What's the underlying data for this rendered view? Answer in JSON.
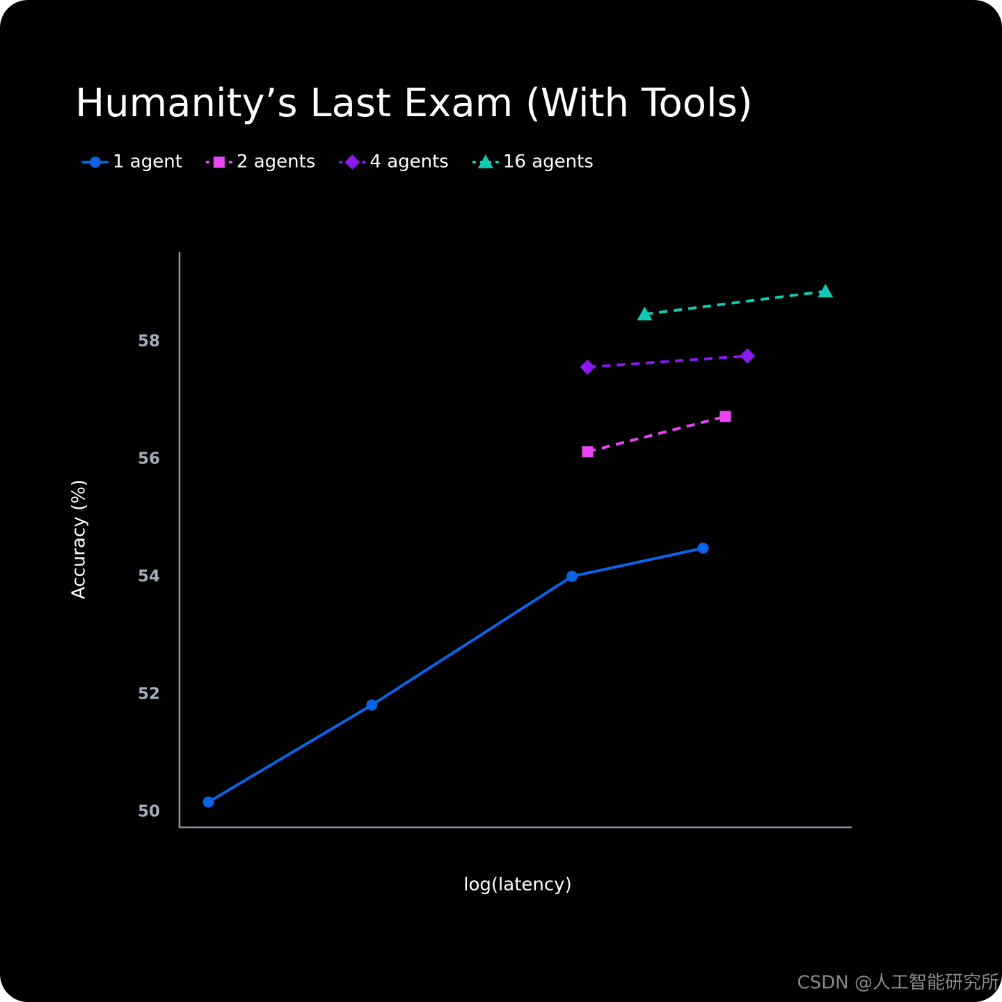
{
  "chart_data": {
    "type": "line",
    "title": "Humanity’s Last Exam (With Tools)",
    "xlabel": "log(latency)",
    "ylabel": "Accuracy (%)",
    "xlim": [
      0,
      100
    ],
    "ylim": [
      49.74,
      59.53
    ],
    "yticks": [
      50,
      52,
      54,
      56,
      58
    ],
    "grid": false,
    "legend": "top-left",
    "series": [
      {
        "name": "1 agent",
        "color": "#0a64e6",
        "marker": "circle",
        "dash": "solid",
        "x": [
          4.3,
          28.6,
          58.4,
          77.9
        ],
        "values": [
          50.17,
          51.82,
          54.01,
          54.49
        ]
      },
      {
        "name": "2 agents",
        "color": "#e945f0",
        "marker": "square",
        "dash": "dashed",
        "x": [
          60.7,
          81.2
        ],
        "values": [
          56.13,
          56.73
        ]
      },
      {
        "name": "4 agents",
        "color": "#8a19f2",
        "marker": "diamond",
        "dash": "dashed",
        "x": [
          60.7,
          84.5
        ],
        "values": [
          57.57,
          57.76
        ]
      },
      {
        "name": "16 agents",
        "color": "#12c9b4",
        "marker": "triangle",
        "dash": "dashed",
        "x": [
          69.2,
          96.1
        ],
        "values": [
          58.47,
          58.86
        ]
      }
    ],
    "watermark": "CSDN @人工智能研究所"
  }
}
